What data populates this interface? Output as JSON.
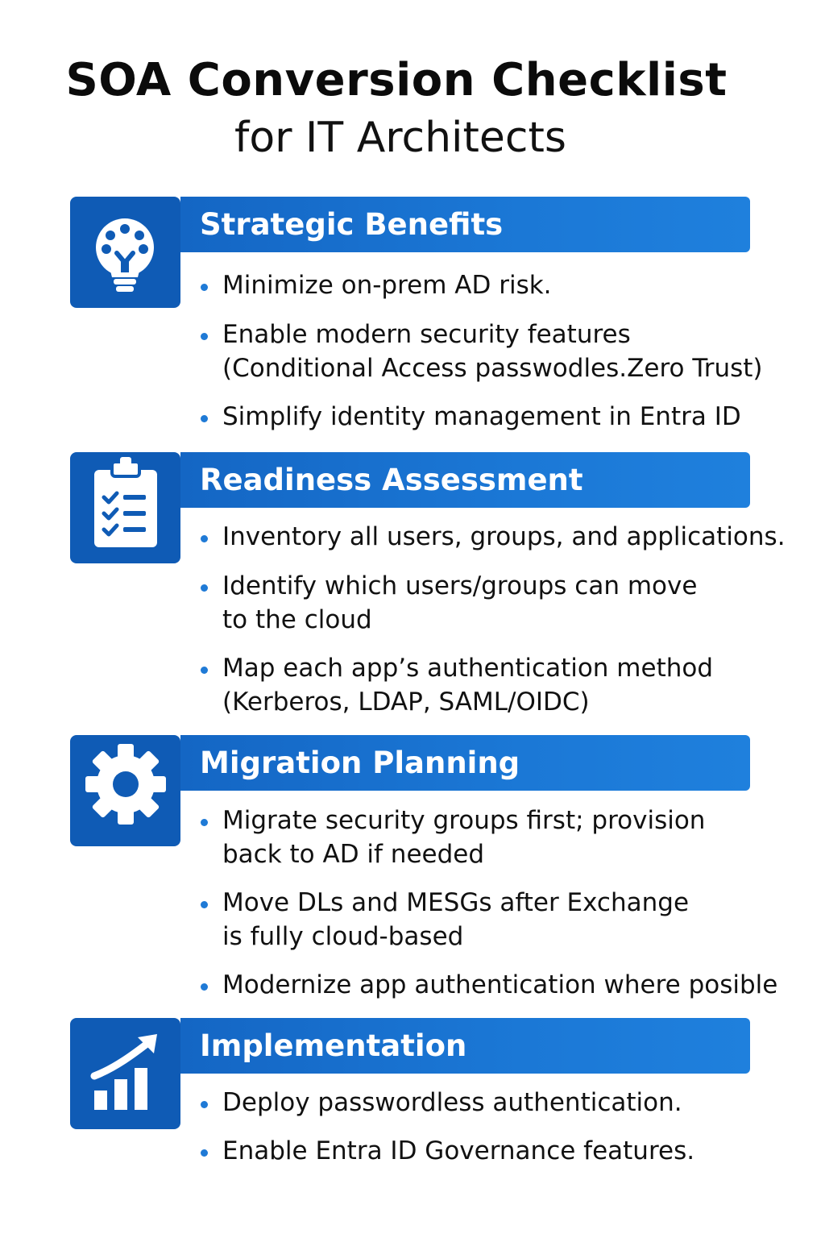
{
  "title": "SOA Conversion Checklist",
  "subtitle": "for IT Architects",
  "sections": [
    {
      "icon": "lightbulb-icon",
      "title": "Strategic Benefits",
      "bullets": [
        [
          "Minimize on-prem AD risk."
        ],
        [
          "Enable modern security features",
          "(Conditional Access  passwodles.Zero Trust)"
        ],
        [
          "Simplify identity management in Entra ID"
        ]
      ]
    },
    {
      "icon": "clipboard-checklist-icon",
      "title": "Readiness Assessment",
      "bullets": [
        [
          "Inventory all users, groups, and applications."
        ],
        [
          "Identify which users/groups can move",
          "to the cloud"
        ],
        [
          "Map each app’s authentication method",
          "(Kerberos, LDAP, SAML/OIDC)"
        ]
      ]
    },
    {
      "icon": "gear-icon",
      "title": "Migration Planning",
      "bullets": [
        [
          "Migrate security groups first; provision",
          "back to AD if needed"
        ],
        [
          "Move DLs and MESGs after Exchange",
          "is fully cloud-based"
        ],
        [
          "Modernize app authentication where posible"
        ]
      ]
    },
    {
      "icon": "growth-chart-icon",
      "title": "Implementation",
      "bullets": [
        [
          "Deploy passwordless authentication."
        ],
        [
          "Enable Entra ID Governance features."
        ]
      ]
    }
  ],
  "colors": {
    "header_blue": "#1b78d6",
    "icon_box_blue": "#0f5bb5",
    "bullet_blue": "#1f7ad6"
  }
}
